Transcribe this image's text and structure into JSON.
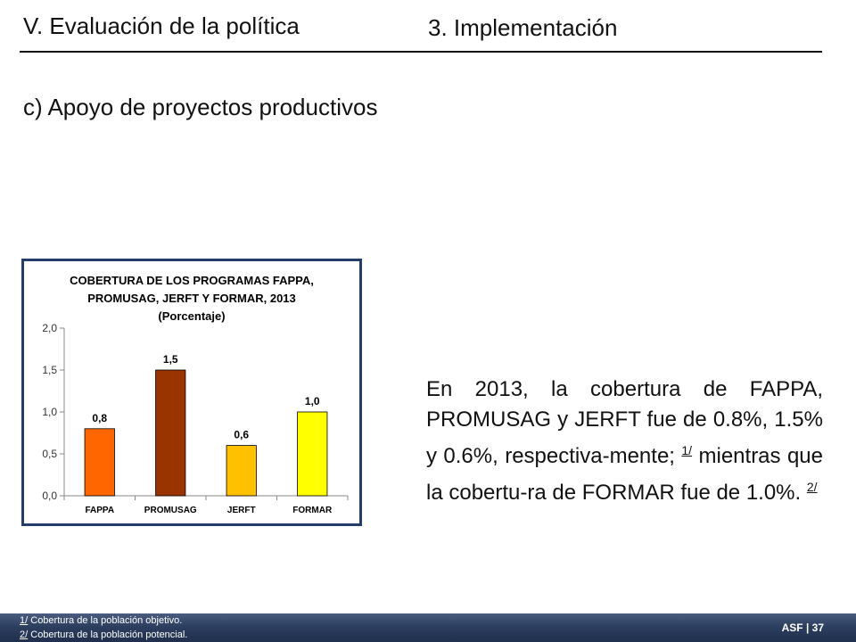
{
  "header": {
    "section": "V. Evaluación de la política",
    "subsection": "3. Implementación",
    "topic": "c) Apoyo de proyectos productivos"
  },
  "chart_data": {
    "type": "bar",
    "title_lines": [
      "COBERTURA DE LOS PROGRAMAS FAPPA,",
      "PROMUSAG, JERFT Y FORMAR, 2013",
      "(Porcentaje)"
    ],
    "categories": [
      "FAPPA",
      "PROMUSAG",
      "JERFT",
      "FORMAR"
    ],
    "values": [
      0.8,
      1.5,
      0.6,
      1.0
    ],
    "data_labels": [
      "0,8",
      "1,5",
      "0,6",
      "1,0"
    ],
    "colors": [
      "#ff6600",
      "#993300",
      "#ffc000",
      "#ffff00"
    ],
    "ylim": [
      0,
      2.0
    ],
    "yticks": [
      0.0,
      0.5,
      1.0,
      1.5,
      2.0
    ],
    "ytick_labels": [
      "0,0",
      "0,5",
      "1,0",
      "1,5",
      "2,0"
    ],
    "xlabel": "",
    "ylabel": "",
    "grid": false
  },
  "body": {
    "text_a": "En 2013, la cobertura de FAPPA, PROMUSAG y JERFT fue de 0.8%, 1.5% y 0.6%, respectiva-mente;",
    "ref1": "1/",
    "text_b": "mientras que la cobertu-ra de FORMAR fue de 1.0%.",
    "ref2": "2/"
  },
  "footer": {
    "note1_ref": "1/",
    "note1_text": " Cobertura de la población objetivo.",
    "note2_ref": "2/",
    "note2_text": " Cobertura de la población potencial.",
    "page_label": "ASF | 37"
  }
}
